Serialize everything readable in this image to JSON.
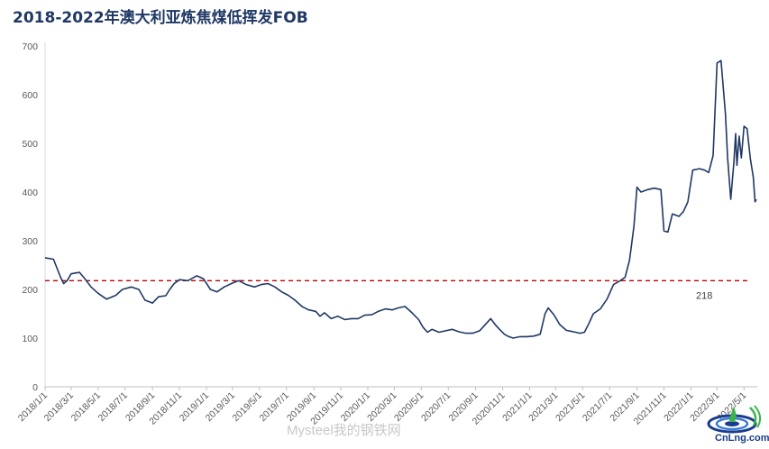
{
  "chart_data": {
    "type": "line",
    "title": "2018-2022年澳大利亚炼焦煤低挥发FOB",
    "xlabel": "",
    "ylabel": "",
    "ylim": [
      0,
      700
    ],
    "yticks": [
      0,
      100,
      200,
      300,
      400,
      500,
      600,
      700
    ],
    "x_ticks": [
      "2018/1/1",
      "2018/3/1",
      "2018/5/1",
      "2018/7/1",
      "2018/9/1",
      "2018/11/1",
      "2019/1/1",
      "2019/3/1",
      "2019/5/1",
      "2019/7/1",
      "2019/9/1",
      "2019/11/1",
      "2020/1/1",
      "2020/3/1",
      "2020/5/1",
      "2020/7/1",
      "2020/9/1",
      "2020/11/1",
      "2021/1/1",
      "2021/3/1",
      "2021/5/1",
      "2021/7/1",
      "2021/9/1",
      "2021/11/1",
      "2022/1/1",
      "2022/3/1",
      "2022/5/1"
    ],
    "grid": false,
    "reference_line": {
      "value": 218,
      "label": "218",
      "color": "#c00000",
      "style": "dashed"
    },
    "series": [
      {
        "color": "#1f3864",
        "points": [
          [
            "2018/1/1",
            265
          ],
          [
            "2018/1/20",
            262
          ],
          [
            "2018/2/5",
            225
          ],
          [
            "2018/2/12",
            212
          ],
          [
            "2018/2/20",
            218
          ],
          [
            "2018/3/1",
            232
          ],
          [
            "2018/3/20",
            235
          ],
          [
            "2018/4/1",
            222
          ],
          [
            "2018/4/15",
            205
          ],
          [
            "2018/5/1",
            192
          ],
          [
            "2018/5/20",
            180
          ],
          [
            "2018/6/10",
            188
          ],
          [
            "2018/6/25",
            200
          ],
          [
            "2018/7/15",
            205
          ],
          [
            "2018/8/1",
            200
          ],
          [
            "2018/8/15",
            178
          ],
          [
            "2018/9/1",
            172
          ],
          [
            "2018/9/15",
            185
          ],
          [
            "2018/10/1",
            187
          ],
          [
            "2018/10/10",
            200
          ],
          [
            "2018/10/20",
            212
          ],
          [
            "2018/11/1",
            220
          ],
          [
            "2018/11/20",
            218
          ],
          [
            "2018/12/10",
            228
          ],
          [
            "2018/12/25",
            222
          ],
          [
            "2019/1/10",
            200
          ],
          [
            "2019/1/25",
            195
          ],
          [
            "2019/2/10",
            205
          ],
          [
            "2019/3/1",
            213
          ],
          [
            "2019/3/15",
            218
          ],
          [
            "2019/4/1",
            210
          ],
          [
            "2019/4/20",
            205
          ],
          [
            "2019/5/5",
            210
          ],
          [
            "2019/5/20",
            212
          ],
          [
            "2019/6/5",
            205
          ],
          [
            "2019/6/20",
            195
          ],
          [
            "2019/7/5",
            188
          ],
          [
            "2019/7/20",
            178
          ],
          [
            "2019/8/5",
            165
          ],
          [
            "2019/8/20",
            158
          ],
          [
            "2019/9/5",
            155
          ],
          [
            "2019/9/15",
            145
          ],
          [
            "2019/9/25",
            152
          ],
          [
            "2019/10/10",
            140
          ],
          [
            "2019/10/25",
            145
          ],
          [
            "2019/11/10",
            138
          ],
          [
            "2019/11/25",
            140
          ],
          [
            "2019/12/10",
            140
          ],
          [
            "2019/12/25",
            147
          ],
          [
            "2020/1/10",
            148
          ],
          [
            "2020/1/25",
            155
          ],
          [
            "2020/2/10",
            160
          ],
          [
            "2020/2/25",
            158
          ],
          [
            "2020/3/10",
            162
          ],
          [
            "2020/3/25",
            165
          ],
          [
            "2020/4/10",
            152
          ],
          [
            "2020/4/25",
            138
          ],
          [
            "2020/5/5",
            122
          ],
          [
            "2020/5/15",
            112
          ],
          [
            "2020/5/25",
            118
          ],
          [
            "2020/6/10",
            112
          ],
          [
            "2020/6/25",
            115
          ],
          [
            "2020/7/10",
            118
          ],
          [
            "2020/7/25",
            113
          ],
          [
            "2020/8/10",
            110
          ],
          [
            "2020/8/25",
            110
          ],
          [
            "2020/9/10",
            115
          ],
          [
            "2020/9/25",
            130
          ],
          [
            "2020/10/5",
            140
          ],
          [
            "2020/10/15",
            128
          ],
          [
            "2020/10/25",
            118
          ],
          [
            "2020/11/5",
            108
          ],
          [
            "2020/11/15",
            103
          ],
          [
            "2020/11/25",
            100
          ],
          [
            "2020/12/10",
            103
          ],
          [
            "2020/12/25",
            103
          ],
          [
            "2021/1/10",
            104
          ],
          [
            "2021/1/25",
            108
          ],
          [
            "2021/2/5",
            150
          ],
          [
            "2021/2/12",
            162
          ],
          [
            "2021/2/25",
            148
          ],
          [
            "2021/3/10",
            128
          ],
          [
            "2021/3/25",
            116
          ],
          [
            "2021/4/10",
            113
          ],
          [
            "2021/4/25",
            110
          ],
          [
            "2021/5/5",
            112
          ],
          [
            "2021/5/15",
            130
          ],
          [
            "2021/5/25",
            150
          ],
          [
            "2021/6/10",
            160
          ],
          [
            "2021/6/25",
            180
          ],
          [
            "2021/7/10",
            210
          ],
          [
            "2021/7/25",
            218
          ],
          [
            "2021/8/5",
            225
          ],
          [
            "2021/8/15",
            260
          ],
          [
            "2021/8/25",
            330
          ],
          [
            "2021/9/1",
            410
          ],
          [
            "2021/9/10",
            400
          ],
          [
            "2021/9/25",
            405
          ],
          [
            "2021/10/10",
            408
          ],
          [
            "2021/10/25",
            405
          ],
          [
            "2021/11/1",
            320
          ],
          [
            "2021/11/10",
            318
          ],
          [
            "2021/11/20",
            355
          ],
          [
            "2021/12/5",
            350
          ],
          [
            "2021/12/15",
            360
          ],
          [
            "2021/12/25",
            380
          ],
          [
            "2022/1/5",
            445
          ],
          [
            "2022/1/20",
            448
          ],
          [
            "2022/2/1",
            445
          ],
          [
            "2022/2/10",
            440
          ],
          [
            "2022/2/20",
            475
          ],
          [
            "2022/3/1",
            665
          ],
          [
            "2022/3/10",
            670
          ],
          [
            "2022/3/20",
            560
          ],
          [
            "2022/3/25",
            470
          ],
          [
            "2022/4/1",
            385
          ],
          [
            "2022/4/8",
            460
          ],
          [
            "2022/4/12",
            520
          ],
          [
            "2022/4/15",
            455
          ],
          [
            "2022/4/20",
            515
          ],
          [
            "2022/4/25",
            470
          ],
          [
            "2022/5/1",
            535
          ],
          [
            "2022/5/8",
            530
          ],
          [
            "2022/5/15",
            470
          ],
          [
            "2022/5/22",
            430
          ],
          [
            "2022/5/26",
            380
          ],
          [
            "2022/5/29",
            385
          ]
        ]
      }
    ]
  },
  "watermark": "Mysteel我的钢铁网",
  "logo": {
    "text": "CnLng.com",
    "icon": "cnlng-logo-icon"
  }
}
